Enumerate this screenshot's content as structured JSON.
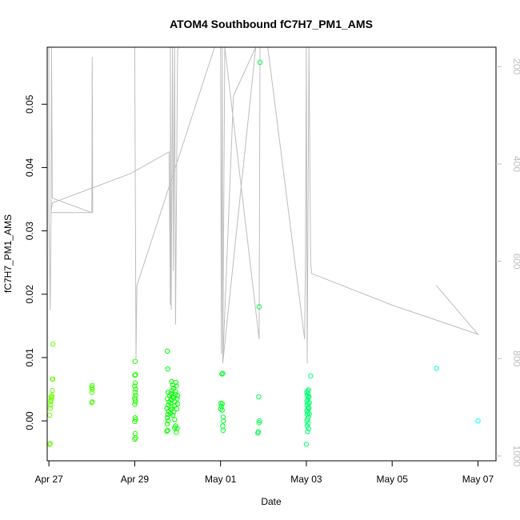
{
  "chart_data": {
    "type": "scatter",
    "title": "ATOM4 Southbound fC7H7_PM1_AMS",
    "xlabel": "Date",
    "ylabel": "fC7H7_PM1_AMS",
    "x_ticks": [
      "Apr 27",
      "Apr 29",
      "May 01",
      "May 03",
      "May 05",
      "May 07"
    ],
    "x_tick_days": [
      27,
      29,
      31,
      33,
      35,
      37
    ],
    "xlim_days": [
      26.96,
      37.42
    ],
    "y_ticks": [
      "0.00",
      "0.01",
      "0.02",
      "0.03",
      "0.04",
      "0.05"
    ],
    "y_tick_values": [
      0.0,
      0.01,
      0.02,
      0.03,
      0.04,
      0.05
    ],
    "ylim": [
      -0.0063,
      0.059
    ],
    "y2_ticks": [
      "200",
      "400",
      "600",
      "800",
      "1000"
    ],
    "y2_tick_values": [
      200,
      400,
      600,
      800,
      1000
    ],
    "y2lim": [
      1010,
      160
    ],
    "grid": false,
    "legend": "none",
    "point_style": "open circle, color green to cyan by time",
    "points": [
      [
        27.02,
        -0.0037
      ],
      [
        27.03,
        -0.0036
      ],
      [
        27.02,
        0.0009
      ],
      [
        27.03,
        0.002
      ],
      [
        27.04,
        0.0025
      ],
      [
        27.04,
        0.003
      ],
      [
        27.05,
        0.0033
      ],
      [
        27.06,
        0.0036
      ],
      [
        27.05,
        0.0038
      ],
      [
        27.07,
        0.004
      ],
      [
        27.08,
        0.0048
      ],
      [
        27.08,
        0.0066
      ],
      [
        27.09,
        0.0066
      ],
      [
        27.09,
        0.0121
      ],
      [
        28.0,
        0.0029
      ],
      [
        28.01,
        0.003
      ],
      [
        28.0,
        0.0045
      ],
      [
        28.01,
        0.005
      ],
      [
        28.0,
        0.0053
      ],
      [
        28.01,
        0.0056
      ],
      [
        29.0,
        -0.0029
      ],
      [
        29.02,
        -0.0027
      ],
      [
        29.01,
        -0.002
      ],
      [
        29.0,
        -0.0001
      ],
      [
        29.02,
        0.0002
      ],
      [
        29.01,
        0.0005
      ],
      [
        29.0,
        0.0026
      ],
      [
        29.02,
        0.003
      ],
      [
        29.01,
        0.0033
      ],
      [
        29.0,
        0.0036
      ],
      [
        29.02,
        0.004
      ],
      [
        29.01,
        0.0045
      ],
      [
        29.02,
        0.005
      ],
      [
        29.0,
        0.0055
      ],
      [
        29.01,
        0.006
      ],
      [
        29.0,
        0.0072
      ],
      [
        29.02,
        0.0073
      ],
      [
        29.01,
        0.0094
      ],
      [
        29.75,
        -0.0016
      ],
      [
        29.77,
        -0.0015
      ],
      [
        29.76,
        -0.0005
      ],
      [
        29.78,
        0.0
      ],
      [
        29.76,
        0.0005
      ],
      [
        29.77,
        0.001
      ],
      [
        29.79,
        0.0015
      ],
      [
        29.75,
        0.002
      ],
      [
        29.78,
        0.0025
      ],
      [
        29.8,
        0.003
      ],
      [
        29.76,
        0.0035
      ],
      [
        29.81,
        0.004
      ],
      [
        29.78,
        0.0045
      ],
      [
        29.77,
        0.0082
      ],
      [
        29.76,
        0.011
      ],
      [
        29.83,
        0.0012
      ],
      [
        29.85,
        0.0018
      ],
      [
        29.87,
        0.0022
      ],
      [
        29.84,
        0.0028
      ],
      [
        29.86,
        0.0033
      ],
      [
        29.88,
        0.0038
      ],
      [
        29.85,
        0.0043
      ],
      [
        29.87,
        0.0048
      ],
      [
        29.9,
        0.0052
      ],
      [
        29.89,
        0.0057
      ],
      [
        29.86,
        0.0062
      ],
      [
        29.92,
        0.0024
      ],
      [
        29.93,
        0.003
      ],
      [
        29.91,
        0.0036
      ],
      [
        29.94,
        0.0042
      ],
      [
        29.95,
        0.0046
      ],
      [
        29.97,
        0.0055
      ],
      [
        29.96,
        0.0061
      ],
      [
        29.93,
        -0.0011
      ],
      [
        29.95,
        -0.0008
      ],
      [
        29.97,
        -0.0018
      ],
      [
        29.99,
        -0.0012
      ],
      [
        29.98,
        0.0019
      ],
      [
        30.0,
        0.0027
      ],
      [
        29.99,
        0.0035
      ],
      [
        30.0,
        0.004
      ],
      [
        29.89,
        0.0009
      ],
      [
        29.91,
        0.0014
      ],
      [
        29.93,
        0.0002
      ],
      [
        31.0,
        0.0019
      ],
      [
        31.02,
        0.0023
      ],
      [
        31.04,
        0.0027
      ],
      [
        31.01,
        0.0028
      ],
      [
        31.03,
        0.0074
      ],
      [
        31.05,
        0.0075
      ],
      [
        31.04,
        0.0017
      ],
      [
        31.06,
        0.0006
      ],
      [
        31.05,
        -0.0008
      ],
      [
        31.06,
        -0.0015
      ],
      [
        31.07,
        0.0
      ],
      [
        31.87,
        -0.0019
      ],
      [
        31.88,
        -0.0017
      ],
      [
        31.9,
        -0.0003
      ],
      [
        31.91,
        0.0
      ],
      [
        31.89,
        0.0038
      ],
      [
        31.9,
        0.018
      ],
      [
        31.92,
        0.0566
      ],
      [
        33.0,
        -0.0037
      ],
      [
        33.03,
        -0.0017
      ],
      [
        33.05,
        -0.0012
      ],
      [
        33.02,
        -0.0008
      ],
      [
        33.04,
        -0.0004
      ],
      [
        33.01,
        0.0
      ],
      [
        33.03,
        0.0003
      ],
      [
        33.05,
        0.0006
      ],
      [
        33.02,
        0.001
      ],
      [
        33.04,
        0.0013
      ],
      [
        33.01,
        0.0016
      ],
      [
        33.03,
        0.0019
      ],
      [
        33.05,
        0.0022
      ],
      [
        33.02,
        0.0025
      ],
      [
        33.04,
        0.0028
      ],
      [
        33.01,
        0.0031
      ],
      [
        33.03,
        0.0034
      ],
      [
        33.05,
        0.0037
      ],
      [
        33.02,
        0.004
      ],
      [
        33.04,
        0.0043
      ],
      [
        33.01,
        0.0045
      ],
      [
        33.03,
        0.0047
      ],
      [
        33.05,
        0.0049
      ],
      [
        33.06,
        0.0038
      ],
      [
        33.07,
        0.0029
      ],
      [
        33.06,
        0.002
      ],
      [
        33.07,
        0.0011
      ],
      [
        33.1,
        0.0071
      ],
      [
        36.03,
        0.0083
      ],
      [
        37.0,
        0.0
      ]
    ],
    "line_series": [
      [
        27.0,
        160
      ],
      [
        27.0,
        500
      ],
      [
        27.03,
        700
      ],
      [
        27.05,
        500
      ],
      [
        27.06,
        160
      ],
      [
        27.08,
        470
      ],
      [
        28.0,
        500
      ],
      [
        28.01,
        180
      ],
      [
        28.02,
        500
      ],
      [
        27.05,
        500
      ],
      [
        27.08,
        480
      ],
      [
        28.9,
        420
      ],
      [
        29.8,
        375
      ],
      [
        29.83,
        690
      ],
      [
        29.83,
        160
      ],
      [
        29.85,
        700
      ],
      [
        29.88,
        160
      ],
      [
        29.9,
        620
      ],
      [
        29.93,
        160
      ],
      [
        29.95,
        730
      ],
      [
        30.0,
        165
      ],
      [
        30.03,
        160
      ],
      [
        29.0,
        160
      ],
      [
        29.03,
        800
      ],
      [
        29.05,
        650
      ],
      [
        30.86,
        160
      ],
      [
        31.0,
        160
      ],
      [
        31.02,
        790
      ],
      [
        31.04,
        160
      ],
      [
        31.05,
        810
      ],
      [
        31.3,
        260
      ],
      [
        31.82,
        160
      ],
      [
        31.05,
        810
      ],
      [
        31.1,
        160
      ],
      [
        31.9,
        760
      ],
      [
        31.92,
        160
      ],
      [
        31.95,
        160
      ],
      [
        32.1,
        160
      ],
      [
        32.96,
        760
      ],
      [
        32.98,
        580
      ],
      [
        33.0,
        160
      ],
      [
        33.02,
        810
      ],
      [
        33.06,
        160
      ],
      [
        33.1,
        600
      ],
      [
        33.12,
        625
      ],
      [
        35.0,
        690
      ],
      [
        37.0,
        750
      ],
      [
        36.03,
        650
      ]
    ]
  }
}
